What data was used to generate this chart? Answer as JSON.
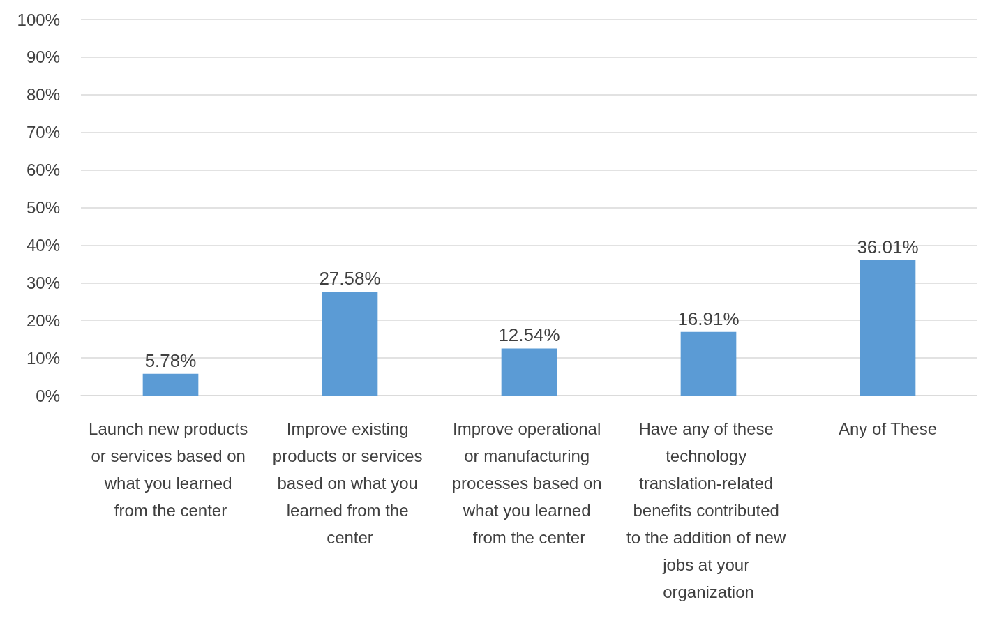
{
  "chart_data": {
    "type": "bar",
    "categories": [
      "Launch new products or services based on what you learned from the center",
      "Improve existing products or services based on what you learned from the center",
      "Improve operational or manufacturing processes based on what you learned from the center",
      "Have any of these technology translation-related benefits contributed to the addition of new jobs at your organization",
      "Any of These"
    ],
    "values": [
      5.78,
      27.58,
      12.54,
      16.91,
      36.01
    ],
    "value_labels": [
      "5.78%",
      "27.58%",
      "12.54%",
      "16.91%",
      "36.01%"
    ],
    "color": "#5b9bd5",
    "ylim": [
      0,
      100
    ],
    "yticks": [
      {
        "value": 0,
        "label": "0%"
      },
      {
        "value": 10,
        "label": "10%"
      },
      {
        "value": 20,
        "label": "20%"
      },
      {
        "value": 30,
        "label": "30%"
      },
      {
        "value": 40,
        "label": "40%"
      },
      {
        "value": 50,
        "label": "50%"
      },
      {
        "value": 60,
        "label": "60%"
      },
      {
        "value": 70,
        "label": "70%"
      },
      {
        "value": 80,
        "label": "80%"
      },
      {
        "value": 90,
        "label": "90%"
      },
      {
        "value": 100,
        "label": "100%"
      }
    ],
    "grid": "y"
  }
}
